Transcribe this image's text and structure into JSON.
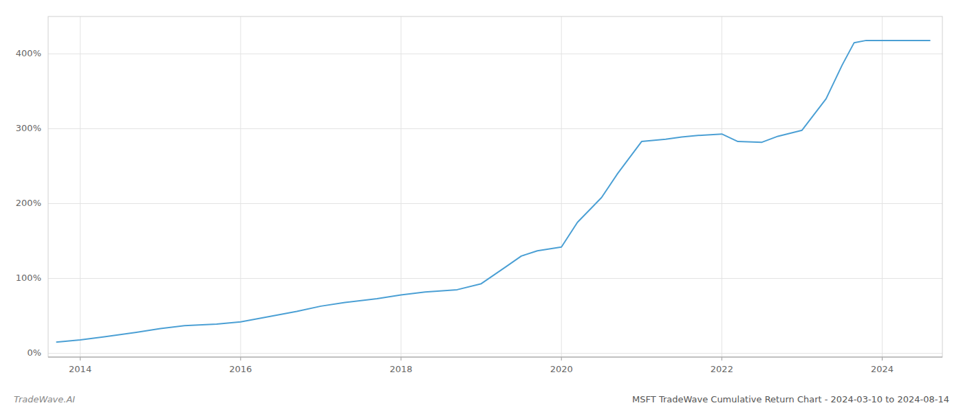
{
  "chart_data": {
    "type": "line",
    "title": "MSFT TradeWave Cumulative Return Chart - 2024-03-10 to 2024-08-14",
    "annotations": [
      "TradeWave.AI"
    ],
    "color": "#4a9fd4",
    "grid": true,
    "xlim": [
      2013.6,
      2024.75
    ],
    "ylim": [
      -5,
      450
    ],
    "xticks": [
      2014,
      2016,
      2018,
      2020,
      2022,
      2024
    ],
    "yticks": [
      {
        "value": 0,
        "label": "0%"
      },
      {
        "value": 100,
        "label": "100%"
      },
      {
        "value": 200,
        "label": "200%"
      },
      {
        "value": 300,
        "label": "300%"
      },
      {
        "value": 400,
        "label": "400%"
      }
    ],
    "x": [
      2013.7,
      2014.0,
      2014.3,
      2014.7,
      2015.0,
      2015.3,
      2015.7,
      2016.0,
      2016.3,
      2016.7,
      2017.0,
      2017.3,
      2017.7,
      2018.0,
      2018.3,
      2018.7,
      2019.0,
      2019.3,
      2019.5,
      2019.7,
      2020.0,
      2020.2,
      2020.5,
      2020.7,
      2021.0,
      2021.3,
      2021.5,
      2021.7,
      2022.0,
      2022.2,
      2022.5,
      2022.7,
      2023.0,
      2023.3,
      2023.5,
      2023.65,
      2023.8,
      2024.0,
      2024.3,
      2024.6
    ],
    "values": [
      15,
      18,
      22,
      28,
      33,
      37,
      39,
      42,
      48,
      56,
      63,
      68,
      73,
      78,
      82,
      85,
      93,
      115,
      130,
      137,
      142,
      175,
      208,
      240,
      283,
      286,
      289,
      291,
      293,
      283,
      282,
      290,
      298,
      340,
      385,
      415,
      418,
      418,
      418,
      418
    ]
  }
}
